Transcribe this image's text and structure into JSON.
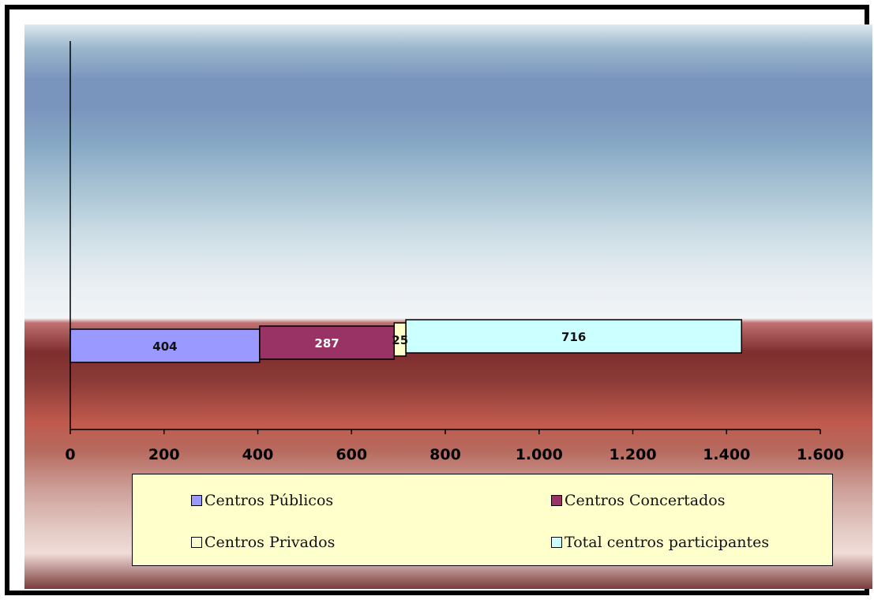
{
  "chart_data": {
    "type": "bar",
    "orientation": "horizontal",
    "stacked": true,
    "series": [
      {
        "name": "Centros Públicos",
        "values": [
          404
        ],
        "color": "#9999ff"
      },
      {
        "name": "Centros Concertados",
        "values": [
          287
        ],
        "color": "#993366"
      },
      {
        "name": "Centros Privados",
        "values": [
          25
        ],
        "color": "#ffffcc"
      },
      {
        "name": "Total centros participantes",
        "values": [
          716
        ],
        "color": "#ccffff"
      }
    ],
    "xlim": [
      0,
      1600
    ],
    "xticks": [
      "0",
      "200",
      "400",
      "600",
      "800",
      "1.000",
      "1.200",
      "1.400",
      "1.600"
    ],
    "data_labels": [
      "404",
      "287",
      "25",
      "716"
    ],
    "legend_position": "bottom",
    "grid": false
  }
}
